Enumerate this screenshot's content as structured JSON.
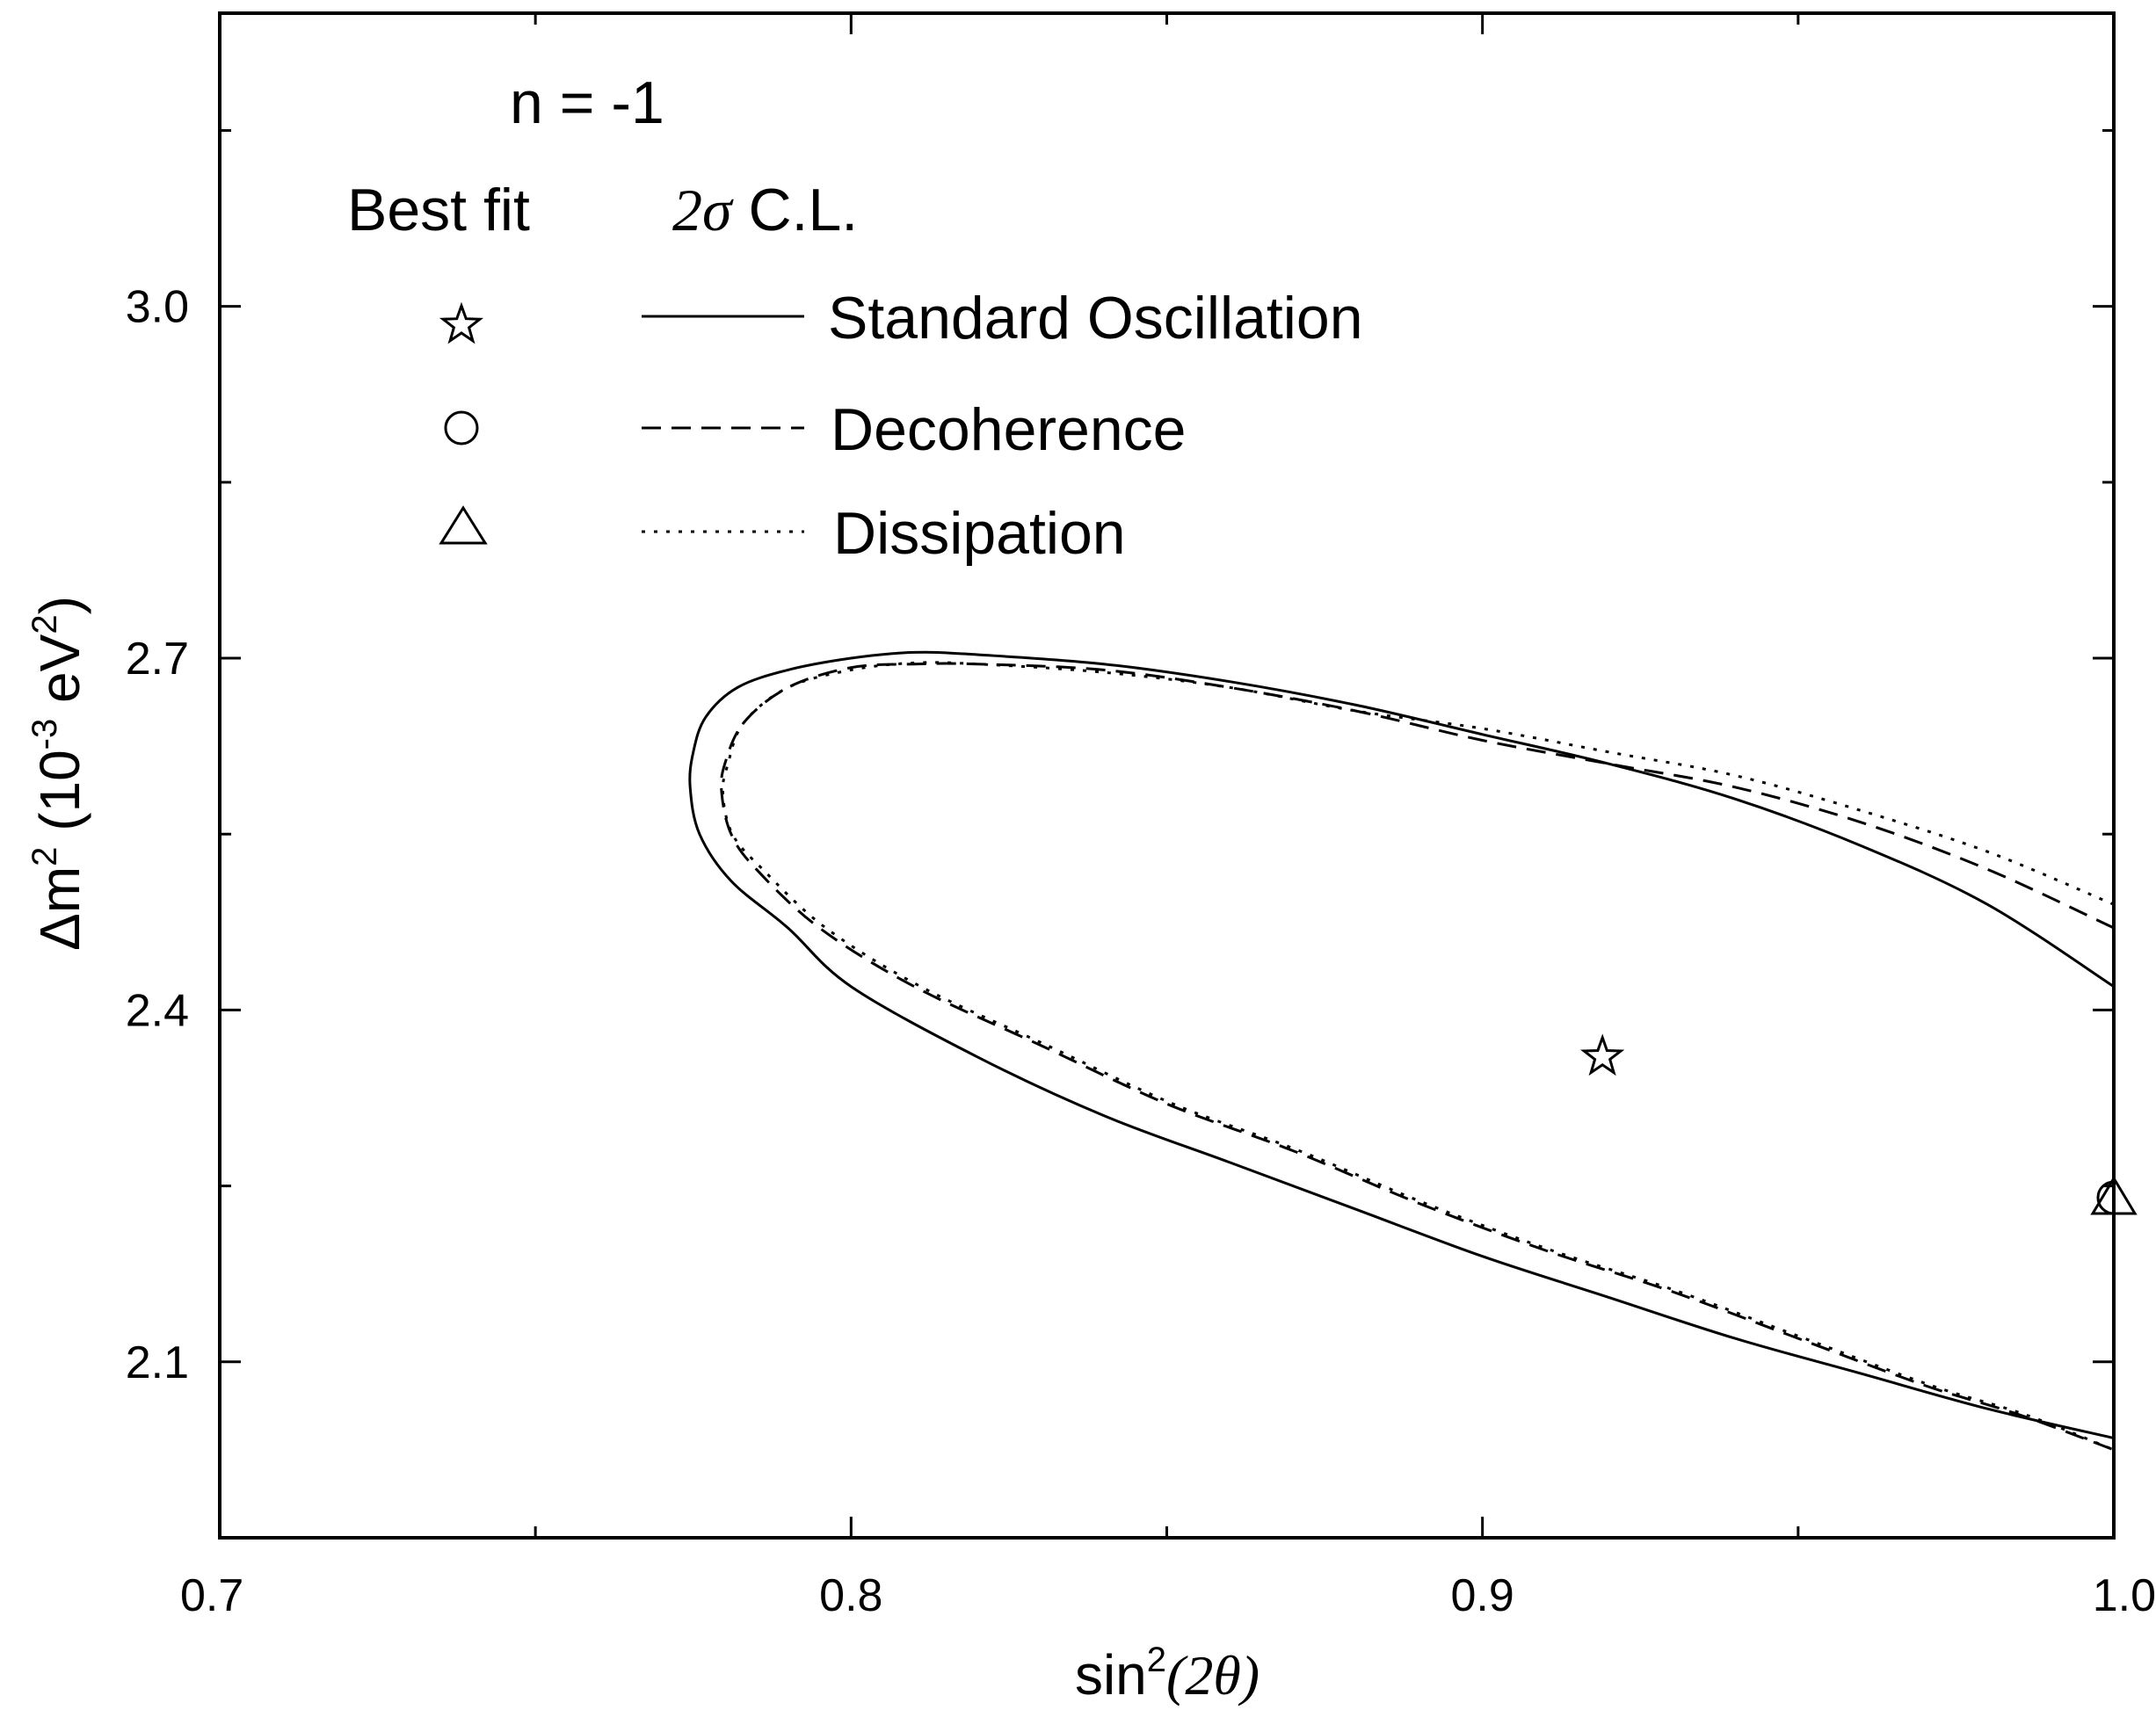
{
  "chart_data": {
    "type": "line",
    "annotation": "n = -1",
    "xlabel": {
      "main": "sin",
      "sup": "2",
      "arg": "(2θ)"
    },
    "ylabel": {
      "main": "Δm",
      "sup1": "2",
      "mid": " (10",
      "sup2": "-3",
      "tail": " eV",
      "sup3": "2",
      "close": ")"
    },
    "xlim": [
      0.7,
      1.0
    ],
    "ylim": [
      1.95,
      3.25
    ],
    "xticks": [
      0.7,
      0.8,
      0.9,
      1.0
    ],
    "xtick_labels": [
      "0.7",
      "0.8",
      "0.9",
      "1.0"
    ],
    "xminor": [
      0.75,
      0.85,
      0.95
    ],
    "yticks": [
      2.1,
      2.4,
      2.7,
      3.0
    ],
    "ytick_labels": [
      "2.1",
      "2.4",
      "2.7",
      "3.0"
    ],
    "yminor": [
      1.95,
      2.25,
      2.55,
      2.85,
      3.15
    ],
    "legend": {
      "header_left": "Best fit",
      "header_right_sym": "2σ",
      "header_right_text": " C.L.",
      "entries": [
        {
          "marker": "star",
          "linestyle": "solid",
          "label": "Standard Oscillation"
        },
        {
          "marker": "circle",
          "linestyle": "dashed",
          "label": "Decoherence"
        },
        {
          "marker": "triangle",
          "linestyle": "dotted",
          "label": "Dissipation"
        }
      ]
    },
    "best_fit_points": [
      {
        "name": "Standard Oscillation",
        "marker": "star",
        "x": 0.919,
        "y": 2.36
      },
      {
        "name": "Decoherence",
        "marker": "circle",
        "x": 1.0,
        "y": 2.24
      },
      {
        "name": "Dissipation",
        "marker": "triangle",
        "x": 1.0,
        "y": 2.24
      }
    ],
    "series": [
      {
        "name": "Standard Oscillation",
        "style": "solid",
        "points": [
          [
            1.0,
            2.42
          ],
          [
            0.98,
            2.49
          ],
          [
            0.96,
            2.54
          ],
          [
            0.94,
            2.58
          ],
          [
            0.92,
            2.61
          ],
          [
            0.9,
            2.635
          ],
          [
            0.88,
            2.66
          ],
          [
            0.86,
            2.68
          ],
          [
            0.84,
            2.695
          ],
          [
            0.82,
            2.703
          ],
          [
            0.81,
            2.705
          ],
          [
            0.8,
            2.7
          ],
          [
            0.79,
            2.69
          ],
          [
            0.782,
            2.675
          ],
          [
            0.777,
            2.65
          ],
          [
            0.775,
            2.62
          ],
          [
            0.7745,
            2.59
          ],
          [
            0.776,
            2.55
          ],
          [
            0.781,
            2.51
          ],
          [
            0.79,
            2.47
          ],
          [
            0.8,
            2.42
          ],
          [
            0.82,
            2.36
          ],
          [
            0.84,
            2.31
          ],
          [
            0.86,
            2.27
          ],
          [
            0.88,
            2.23
          ],
          [
            0.9,
            2.19
          ],
          [
            0.92,
            2.155
          ],
          [
            0.94,
            2.12
          ],
          [
            0.96,
            2.09
          ],
          [
            0.98,
            2.06
          ],
          [
            1.0,
            2.035
          ]
        ]
      },
      {
        "name": "Decoherence",
        "style": "dashed",
        "points": [
          [
            1.0,
            2.47
          ],
          [
            0.98,
            2.52
          ],
          [
            0.96,
            2.56
          ],
          [
            0.94,
            2.59
          ],
          [
            0.92,
            2.61
          ],
          [
            0.9,
            2.63
          ],
          [
            0.88,
            2.655
          ],
          [
            0.86,
            2.675
          ],
          [
            0.84,
            2.69
          ],
          [
            0.82,
            2.695
          ],
          [
            0.81,
            2.695
          ],
          [
            0.8,
            2.692
          ],
          [
            0.79,
            2.675
          ],
          [
            0.783,
            2.645
          ],
          [
            0.78,
            2.61
          ],
          [
            0.7795,
            2.585
          ],
          [
            0.781,
            2.55
          ],
          [
            0.785,
            2.52
          ],
          [
            0.795,
            2.47
          ],
          [
            0.81,
            2.42
          ],
          [
            0.83,
            2.37
          ],
          [
            0.85,
            2.32
          ],
          [
            0.87,
            2.28
          ],
          [
            0.89,
            2.235
          ],
          [
            0.91,
            2.195
          ],
          [
            0.93,
            2.16
          ],
          [
            0.95,
            2.12
          ],
          [
            0.97,
            2.08
          ],
          [
            0.985,
            2.055
          ],
          [
            1.0,
            2.025
          ]
        ]
      },
      {
        "name": "Dissipation",
        "style": "dotted",
        "points": [
          [
            1.0,
            2.49
          ],
          [
            0.98,
            2.535
          ],
          [
            0.96,
            2.57
          ],
          [
            0.94,
            2.6
          ],
          [
            0.92,
            2.62
          ],
          [
            0.9,
            2.64
          ],
          [
            0.88,
            2.655
          ],
          [
            0.86,
            2.675
          ],
          [
            0.84,
            2.688
          ],
          [
            0.82,
            2.695
          ],
          [
            0.81,
            2.696
          ],
          [
            0.8,
            2.69
          ],
          [
            0.79,
            2.675
          ],
          [
            0.783,
            2.645
          ],
          [
            0.7805,
            2.61
          ],
          [
            0.7797,
            2.585
          ],
          [
            0.7812,
            2.55
          ],
          [
            0.786,
            2.52
          ],
          [
            0.796,
            2.47
          ],
          [
            0.811,
            2.42
          ],
          [
            0.831,
            2.37
          ],
          [
            0.851,
            2.32
          ],
          [
            0.871,
            2.28
          ],
          [
            0.891,
            2.235
          ],
          [
            0.911,
            2.195
          ],
          [
            0.931,
            2.16
          ],
          [
            0.951,
            2.12
          ],
          [
            0.971,
            2.08
          ],
          [
            0.986,
            2.055
          ],
          [
            1.0,
            2.025
          ]
        ]
      }
    ]
  }
}
